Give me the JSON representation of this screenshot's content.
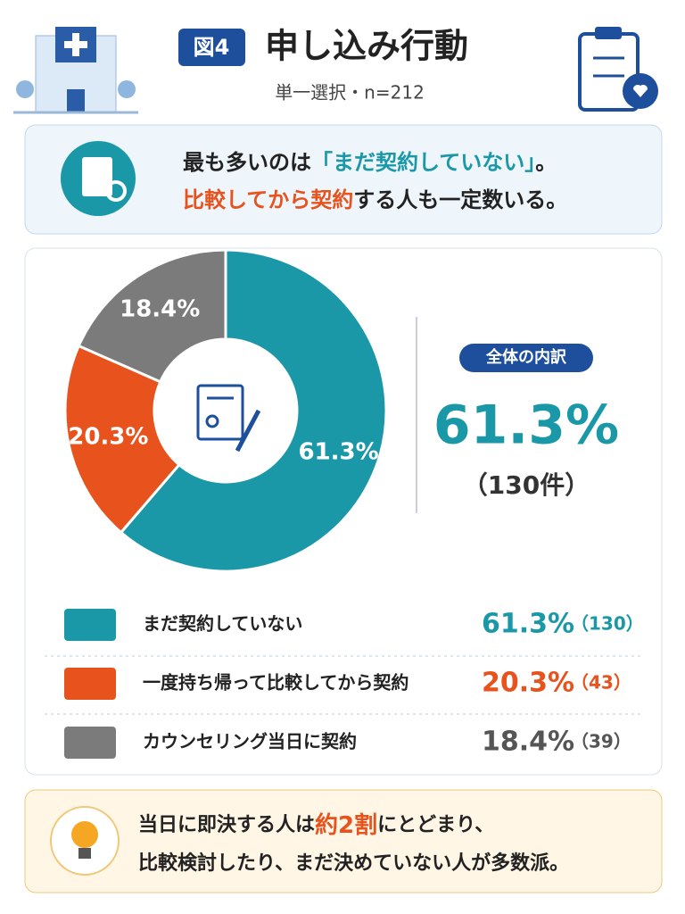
{
  "header": {
    "badge": "図4",
    "title": "申し込み行動",
    "subtitle": "単一選択・n=212"
  },
  "summary": {
    "lines": [
      [
        "最も多いのは",
        "「まだ契約していない」",
        "。"
      ],
      [
        "比較してから契約",
        "する人も一定数いる。"
      ]
    ]
  },
  "chart_data": {
    "type": "pie",
    "categories": [
      "まだ契約していない",
      "一度持ち帰って比較してから契約",
      "カウンセリング当日に契約"
    ],
    "values": [
      61.3,
      20.3,
      18.4
    ],
    "value_labels": [
      "61.3%",
      "20.3%",
      "18.4%"
    ],
    "colors": [
      "#1b98a8",
      "#e8521c",
      "#7b7b7b"
    ],
    "counts": [
      130,
      43,
      39
    ],
    "count_labels": [
      "（130）",
      "（43）",
      "（39）"
    ]
  },
  "callout": {
    "label": "全体の内訳",
    "value_label": "61.3%",
    "count_label": "（130件）"
  },
  "footer": {
    "lines": [
      [
        "当日に即決する人は",
        "約2割",
        "にとどまり、"
      ],
      [
        "比較検討したり、まだ決めていない人が多数派。"
      ]
    ]
  }
}
